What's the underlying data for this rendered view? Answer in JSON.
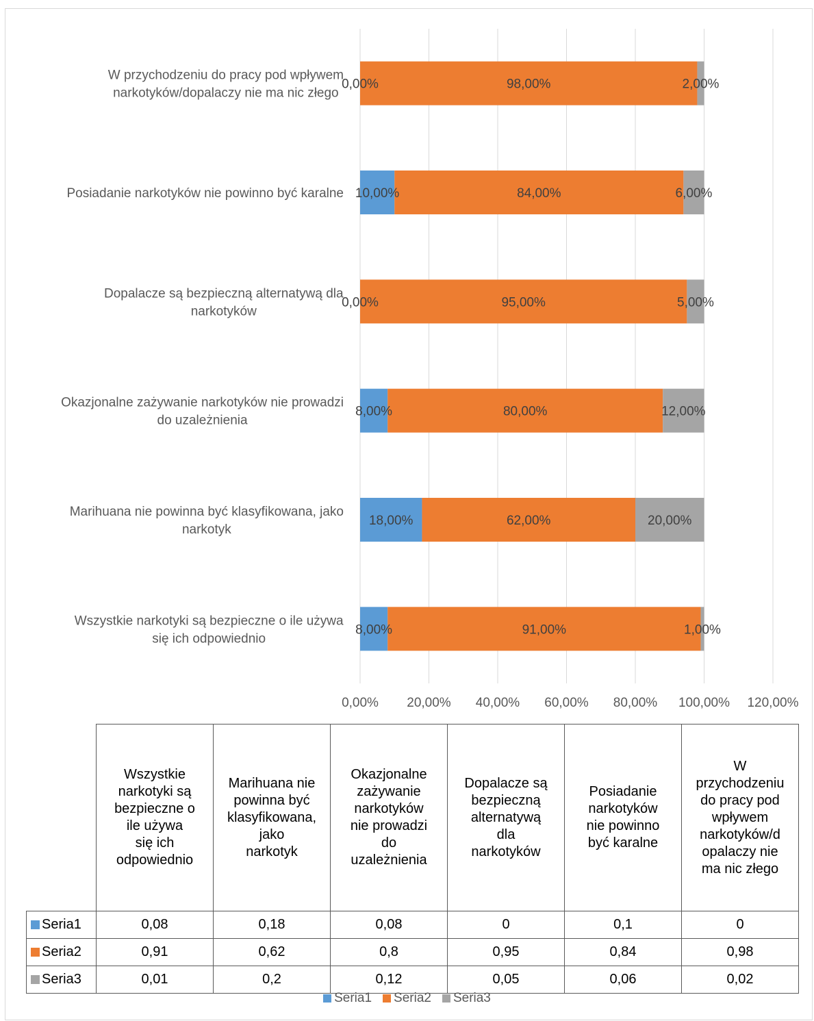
{
  "chart_data": {
    "type": "bar",
    "orientation": "horizontal",
    "stacked": true,
    "categories": [
      "Wszystkie narkotyki są bezpieczne o ile używa się ich odpowiednio",
      "Marihuana nie powinna być klasyfikowana, jako narkotyk",
      "Okazjonalne zażywanie narkotyków nie prowadzi do uzależnienia",
      "Dopalacze są bezpieczną alternatywą dla narkotyków",
      "Posiadanie narkotyków nie powinno być karalne",
      "W przychodzeniu do pracy pod wpływem narkotyków/dopalaczy nie ma nic złego"
    ],
    "category_label_lines": [
      [
        "Wszystkie narkotyki są bezpieczne o ile używa",
        "się ich odpowiednio"
      ],
      [
        "Marihuana nie powinna być klasyfikowana, jako",
        "narkotyk"
      ],
      [
        "Okazjonalne zażywanie narkotyków nie prowadzi",
        "do uzależnienia"
      ],
      [
        "Dopalacze są bezpieczną alternatywą dla",
        "narkotyków"
      ],
      [
        "Posiadanie narkotyków nie powinno być karalne"
      ],
      [
        "W przychodzeniu do pracy pod wpływem",
        "narkotyków/dopalaczy nie ma nic złego"
      ]
    ],
    "series": [
      {
        "name": "Seria1",
        "color": "#5b9bd5",
        "values": [
          0.08,
          0.18,
          0.08,
          0,
          0.1,
          0
        ]
      },
      {
        "name": "Seria2",
        "color": "#ed7d31",
        "values": [
          0.91,
          0.62,
          0.8,
          0.95,
          0.84,
          0.98
        ]
      },
      {
        "name": "Seria3",
        "color": "#a5a5a5",
        "values": [
          0.01,
          0.2,
          0.12,
          0.05,
          0.06,
          0.02
        ]
      }
    ],
    "data_labels": [
      [
        "8,00%",
        "18,00%",
        "8,00%",
        "0,00%",
        "10,00%",
        "0,00%"
      ],
      [
        "91,00%",
        "62,00%",
        "80,00%",
        "95,00%",
        "84,00%",
        "98,00%"
      ],
      [
        "1,00%",
        "20,00%",
        "12,00%",
        "5,00%",
        "6,00%",
        "2,00%"
      ]
    ],
    "xlim": [
      0,
      1.2
    ],
    "xticks": [
      0,
      0.2,
      0.4,
      0.6,
      0.8,
      1.0,
      1.2
    ],
    "xtick_labels": [
      "0,00%",
      "20,00%",
      "40,00%",
      "60,00%",
      "80,00%",
      "100,00%",
      "120,00%"
    ],
    "grid": "vertical",
    "legend": "bottom",
    "data_table": {
      "column_headers": [
        [
          "Wszystkie",
          "narkotyki są",
          "bezpieczne o",
          "ile używa",
          "się ich",
          "odpowiednio"
        ],
        [
          "Marihuana nie",
          "powinna być",
          "klasyfikowana,",
          "jako",
          "narkotyk"
        ],
        [
          "Okazjonalne",
          "zażywanie",
          "narkotyków",
          "nie prowadzi",
          "do",
          "uzależnienia"
        ],
        [
          "Dopalacze są",
          "bezpieczną",
          "alternatywą",
          "dla",
          "narkotyków"
        ],
        [
          "Posiadanie",
          "narkotyków",
          "nie powinno",
          "być karalne"
        ],
        [
          "W",
          "przychodzeniu",
          "do pracy pod",
          "wpływem",
          "narkotyków/d",
          "opalaczy nie",
          "ma nic złego"
        ]
      ],
      "rows": [
        {
          "name": "Seria1",
          "cells": [
            "0,08",
            "0,18",
            "0,08",
            "0",
            "0,1",
            "0"
          ]
        },
        {
          "name": "Seria2",
          "cells": [
            "0,91",
            "0,62",
            "0,8",
            "0,95",
            "0,84",
            "0,98"
          ]
        },
        {
          "name": "Seria3",
          "cells": [
            "0,01",
            "0,2",
            "0,12",
            "0,05",
            "0,06",
            "0,02"
          ]
        }
      ]
    }
  }
}
